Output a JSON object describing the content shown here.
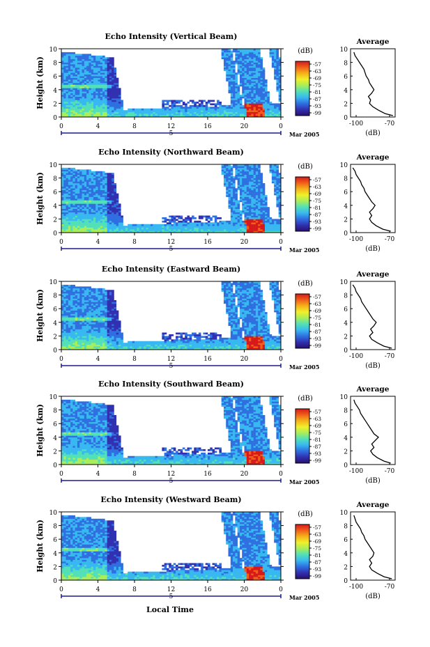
{
  "figure": {
    "time_axis_label": "Local Time",
    "date_label": "Mar 2005",
    "colors": {
      "colormap": [
        "#2a0f6e",
        "#3030b0",
        "#2f6fe0",
        "#38b8f0",
        "#52e0b8",
        "#a8ee5a",
        "#f0f02a",
        "#f5b21a",
        "#f0601a",
        "#d61a1a"
      ],
      "background": "#ffffff"
    }
  },
  "chart_data": [
    {
      "type": "heatmap",
      "title": "Echo Intensity (Vertical Beam)",
      "ylabel": "Height (km)",
      "colorbar_label": "(dB)",
      "colorbar_ticks": [
        "-57",
        "-63",
        "-69",
        "-75",
        "-81",
        "-87",
        "-93",
        "-99"
      ],
      "x_ticks": [
        "0",
        "4",
        "8",
        "12",
        "16",
        "20",
        "0"
      ],
      "x_sub_label": "5",
      "y_ticks": [
        "0",
        "2",
        "4",
        "6",
        "8",
        "10"
      ],
      "xlim": [
        0,
        24
      ],
      "ylim": [
        0,
        10
      ],
      "profile": {
        "title": "Average",
        "xlabel": "(dB)",
        "x_ticks": [
          "-100",
          "-70"
        ],
        "y_ticks": [
          "0",
          "2",
          "4",
          "6",
          "8",
          "10"
        ],
        "xlim": [
          -105,
          -65
        ],
        "ylim": [
          0,
          10
        ],
        "height": [
          0.2,
          0.5,
          1.0,
          1.5,
          2.0,
          2.5,
          3.0,
          3.5,
          4.0,
          4.5,
          5.0,
          5.5,
          6.0,
          6.5,
          7.0,
          7.5,
          8.0,
          8.5,
          9.0,
          9.5
        ],
        "value": [
          -67,
          -74,
          -80,
          -85,
          -88,
          -87,
          -89,
          -86,
          -84,
          -86,
          -88,
          -89,
          -91,
          -92,
          -93,
          -95,
          -97,
          -99,
          -101,
          -102
        ]
      }
    },
    {
      "type": "heatmap",
      "title": "Echo Intensity (Northward Beam)",
      "ylabel": "Height (km)",
      "colorbar_label": "(dB)",
      "colorbar_ticks": [
        "-57",
        "-63",
        "-69",
        "-75",
        "-81",
        "-87",
        "-93",
        "-99"
      ],
      "x_ticks": [
        "0",
        "4",
        "8",
        "12",
        "16",
        "20",
        "0"
      ],
      "x_sub_label": "5",
      "y_ticks": [
        "0",
        "2",
        "4",
        "6",
        "8",
        "10"
      ],
      "xlim": [
        0,
        24
      ],
      "ylim": [
        0,
        10
      ],
      "profile": {
        "title": "Average",
        "xlabel": "(dB)",
        "x_ticks": [
          "-100",
          "-70"
        ],
        "y_ticks": [
          "0",
          "2",
          "4",
          "6",
          "8",
          "10"
        ],
        "xlim": [
          -105,
          -65
        ],
        "ylim": [
          0,
          10
        ],
        "height": [
          0.2,
          0.5,
          1.0,
          1.5,
          2.0,
          2.5,
          3.0,
          3.5,
          4.0,
          4.5,
          5.0,
          5.5,
          6.0,
          6.5,
          7.0,
          7.5,
          8.0,
          8.5,
          9.0,
          9.5
        ],
        "value": [
          -69,
          -76,
          -82,
          -86,
          -88,
          -86,
          -88,
          -85,
          -83,
          -86,
          -88,
          -90,
          -92,
          -93,
          -95,
          -96,
          -98,
          -100,
          -101,
          -103
        ]
      }
    },
    {
      "type": "heatmap",
      "title": "Echo Intensity (Eastward Beam)",
      "ylabel": "Height (km)",
      "colorbar_label": "(dB)",
      "colorbar_ticks": [
        "-57",
        "-63",
        "-69",
        "-75",
        "-81",
        "-87",
        "-93",
        "-99"
      ],
      "x_ticks": [
        "0",
        "4",
        "8",
        "12",
        "16",
        "20",
        "0"
      ],
      "x_sub_label": "5",
      "y_ticks": [
        "0",
        "2",
        "4",
        "6",
        "8",
        "10"
      ],
      "xlim": [
        0,
        24
      ],
      "ylim": [
        0,
        10
      ],
      "profile": {
        "title": "Average",
        "xlabel": "(dB)",
        "x_ticks": [
          "-100",
          "-70"
        ],
        "y_ticks": [
          "0",
          "2",
          "4",
          "6",
          "8",
          "10"
        ],
        "xlim": [
          -105,
          -65
        ],
        "ylim": [
          0,
          10
        ],
        "height": [
          0.2,
          0.5,
          1.0,
          1.5,
          2.0,
          2.5,
          3.0,
          3.5,
          4.0,
          4.5,
          5.0,
          5.5,
          6.0,
          6.5,
          7.0,
          7.5,
          8.0,
          8.5,
          9.0,
          9.5
        ],
        "value": [
          -68,
          -75,
          -81,
          -86,
          -88,
          -85,
          -87,
          -84,
          -82,
          -85,
          -87,
          -89,
          -91,
          -93,
          -95,
          -96,
          -98,
          -100,
          -101,
          -103
        ]
      }
    },
    {
      "type": "heatmap",
      "title": "Echo Intensity (Southward Beam)",
      "ylabel": "Height (km)",
      "colorbar_label": "(dB)",
      "colorbar_ticks": [
        "-57",
        "-63",
        "-69",
        "-75",
        "-81",
        "-87",
        "-93",
        "-99"
      ],
      "x_ticks": [
        "0",
        "4",
        "8",
        "12",
        "16",
        "20",
        "0"
      ],
      "x_sub_label": "5",
      "y_ticks": [
        "0",
        "2",
        "4",
        "6",
        "8",
        "10"
      ],
      "xlim": [
        0,
        24
      ],
      "ylim": [
        0,
        10
      ],
      "profile": {
        "title": "Average",
        "xlabel": "(dB)",
        "x_ticks": [
          "-100",
          "-70"
        ],
        "y_ticks": [
          "0",
          "2",
          "4",
          "6",
          "8",
          "10"
        ],
        "xlim": [
          -105,
          -65
        ],
        "ylim": [
          0,
          10
        ],
        "height": [
          0.2,
          0.5,
          1.0,
          1.5,
          2.0,
          2.5,
          3.0,
          3.5,
          4.0,
          4.5,
          5.0,
          5.5,
          6.0,
          6.5,
          7.0,
          7.5,
          8.0,
          8.5,
          9.0,
          9.5
        ],
        "value": [
          -69,
          -75,
          -81,
          -85,
          -87,
          -84,
          -86,
          -83,
          -80,
          -84,
          -86,
          -88,
          -90,
          -92,
          -94,
          -96,
          -97,
          -99,
          -101,
          -102
        ]
      }
    },
    {
      "type": "heatmap",
      "title": "Echo Intensity (Westward Beam)",
      "ylabel": "Height (km)",
      "colorbar_label": "(dB)",
      "colorbar_ticks": [
        "-57",
        "-63",
        "-69",
        "-75",
        "-81",
        "-87",
        "-93",
        "-99"
      ],
      "x_ticks": [
        "0",
        "4",
        "8",
        "12",
        "16",
        "20",
        "0"
      ],
      "x_sub_label": "5",
      "y_ticks": [
        "0",
        "2",
        "4",
        "6",
        "8",
        "10"
      ],
      "xlim": [
        0,
        24
      ],
      "ylim": [
        0,
        10
      ],
      "profile": {
        "title": "Average",
        "xlabel": "(dB)",
        "x_ticks": [
          "-100",
          "-70"
        ],
        "y_ticks": [
          "0",
          "2",
          "4",
          "6",
          "8",
          "10"
        ],
        "xlim": [
          -105,
          -65
        ],
        "ylim": [
          0,
          10
        ],
        "height": [
          0.2,
          0.5,
          1.0,
          1.5,
          2.0,
          2.5,
          3.0,
          3.5,
          4.0,
          4.5,
          5.0,
          5.5,
          6.0,
          6.5,
          7.0,
          7.5,
          8.0,
          8.5,
          9.0,
          9.5
        ],
        "value": [
          -68,
          -75,
          -81,
          -86,
          -88,
          -86,
          -88,
          -85,
          -84,
          -86,
          -88,
          -90,
          -92,
          -93,
          -95,
          -96,
          -98,
          -100,
          -101,
          -102
        ]
      }
    }
  ]
}
